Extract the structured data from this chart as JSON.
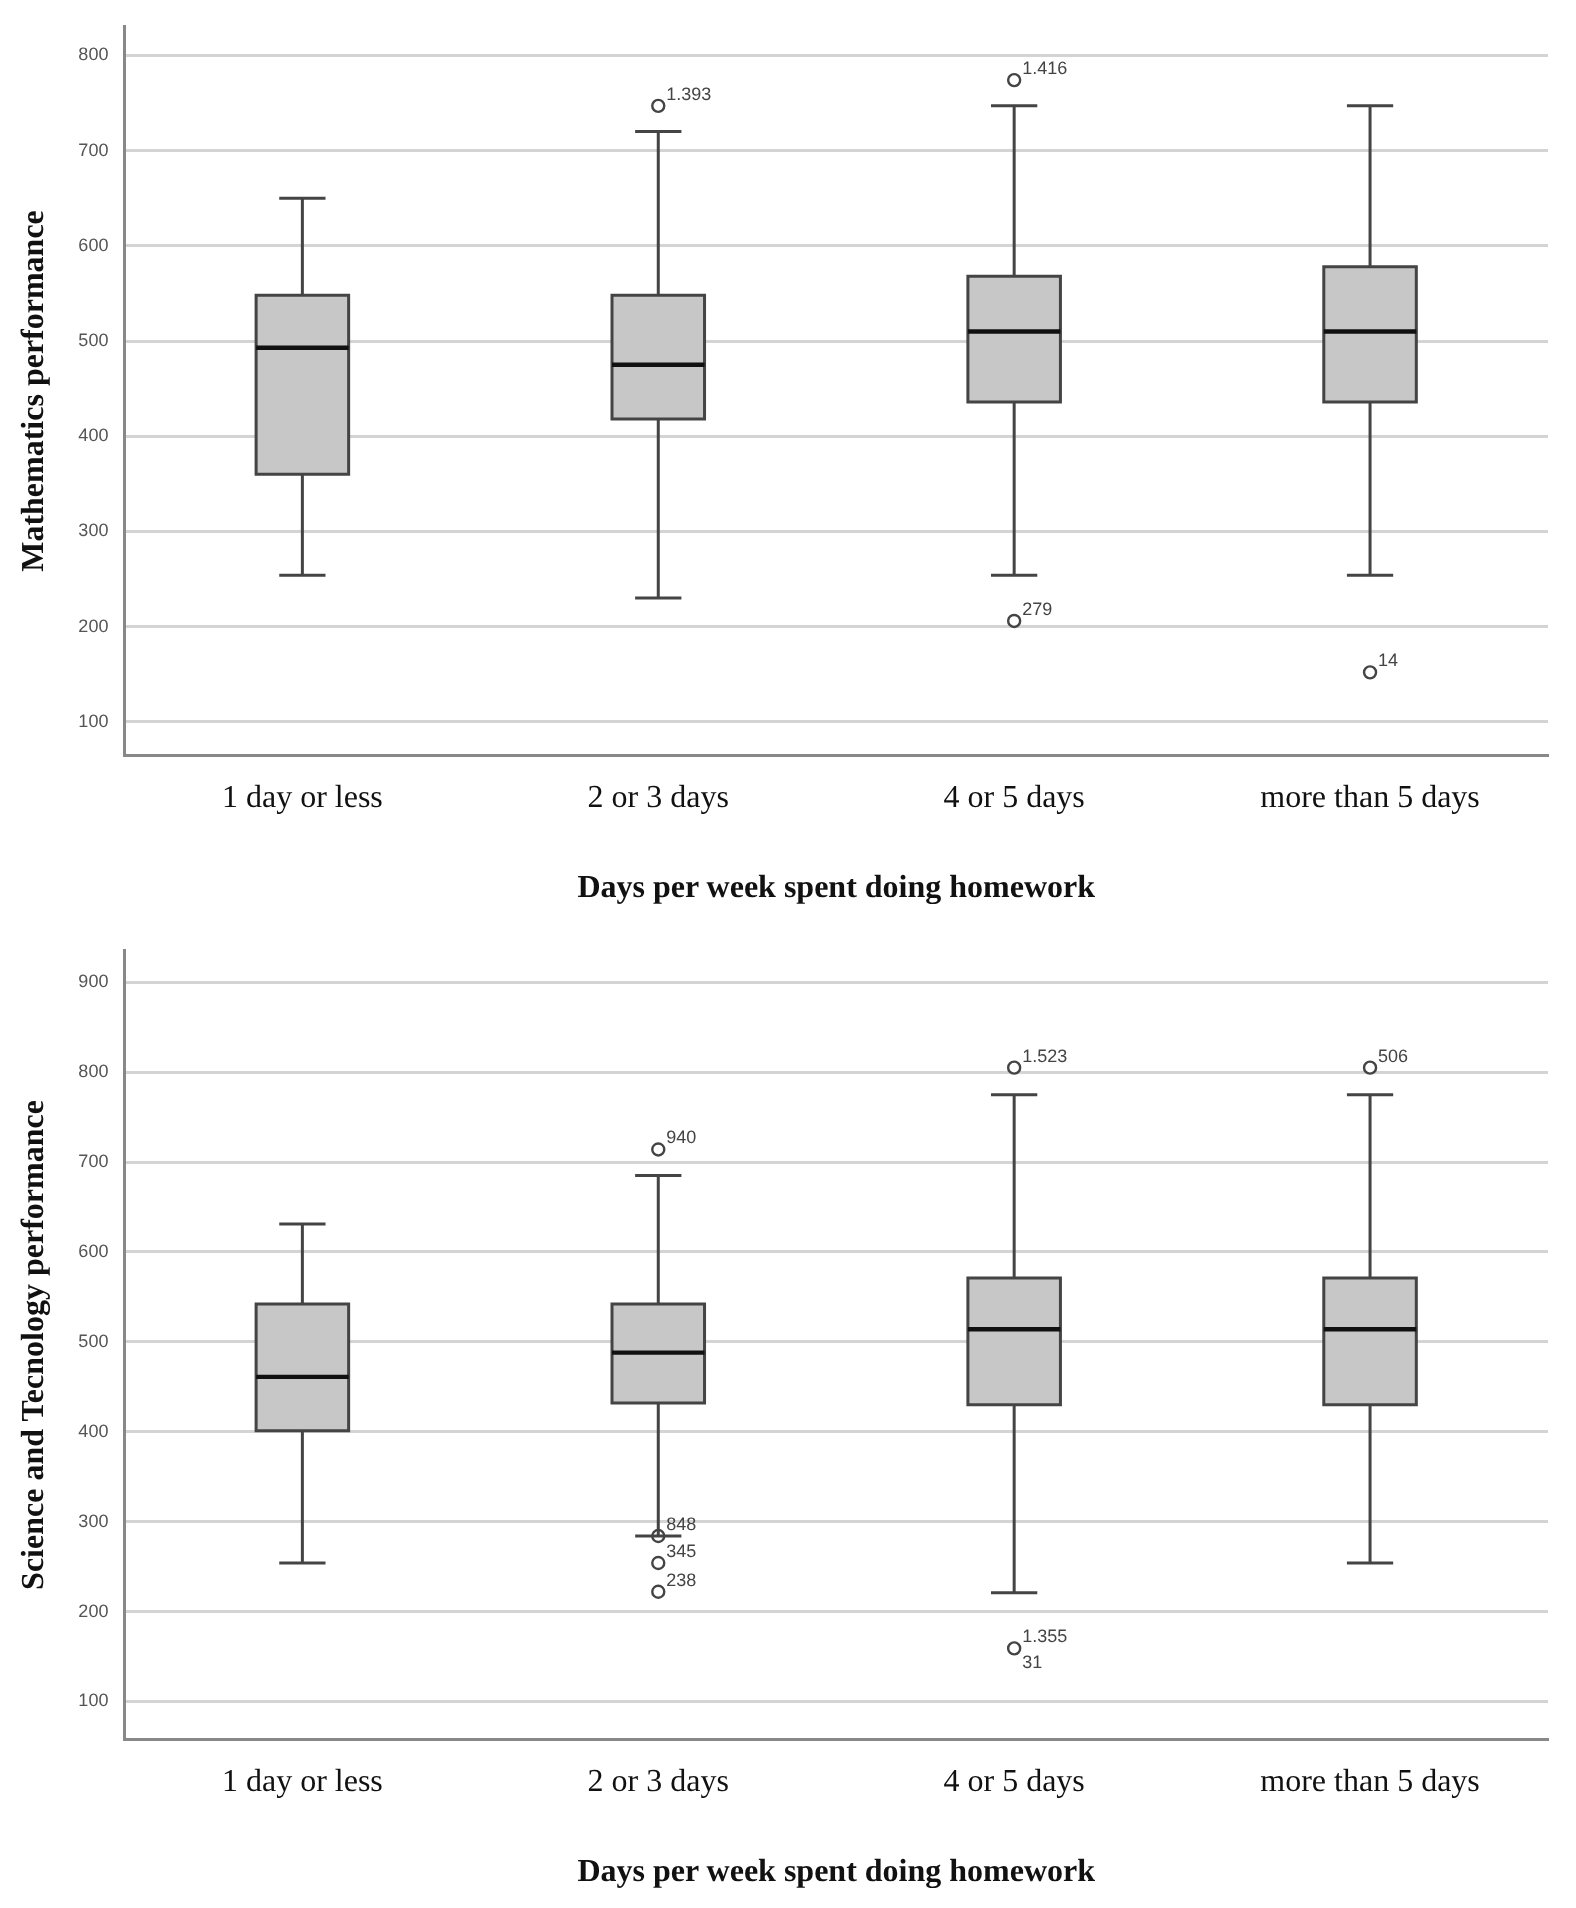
{
  "chart_data": [
    {
      "type": "box",
      "xlabel": "Days per week spent doing homework",
      "ylabel": "Mathematics performance",
      "categories": [
        "1 day or less",
        "2 or 3 days",
        "4 or 5 days",
        "more than 5 days"
      ],
      "series": [
        {
          "color": "#c6c7c6",
          "boxes": [
            {
              "low": 254,
              "q1": 360,
              "median": 493,
              "q3": 548,
              "high": 650
            },
            {
              "low": 230,
              "q1": 418,
              "median": 475,
              "q3": 548,
              "high": 720
            },
            {
              "low": 254,
              "q1": 436,
              "median": 510,
              "q3": 568,
              "high": 747
            },
            {
              "low": 254,
              "q1": 436,
              "median": 510,
              "q3": 578,
              "high": 747
            }
          ]
        },
        {
          "type": "scatter",
          "color": "#444444",
          "x": [
            "2 or 3 days",
            "4 or 5 days",
            "4 or 5 days",
            "more than 5 days"
          ],
          "values": [
            747,
            774,
            206,
            152
          ]
        }
      ],
      "ylim": [
        65,
        830
      ],
      "yticks": [
        100,
        200,
        300,
        400,
        500,
        600,
        700,
        800
      ],
      "grid": "y",
      "legend": false,
      "marker": "circle",
      "annotations": [
        {
          "text": "1.393",
          "x": "2 or 3 days",
          "y": 747
        },
        {
          "text": "1.416",
          "x": "4 or 5 days",
          "y": 774
        },
        {
          "text": "279",
          "x": "4 or 5 days",
          "y": 206
        },
        {
          "text": "14",
          "x": "more than 5 days",
          "y": 152
        }
      ]
    },
    {
      "type": "box",
      "xlabel": "Days per week spent doing homework",
      "ylabel": "Science and Tecnology performance",
      "categories": [
        "1 day or less",
        "2 or 3 days",
        "4 or 5 days",
        "more than 5 days"
      ],
      "series": [
        {
          "color": "#c6c7c6",
          "boxes": [
            {
              "low": 254,
              "q1": 401,
              "median": 461,
              "q3": 542,
              "high": 631
            },
            {
              "low": 284,
              "q1": 432,
              "median": 488,
              "q3": 542,
              "high": 685
            },
            {
              "low": 221,
              "q1": 430,
              "median": 514,
              "q3": 571,
              "high": 775
            },
            {
              "low": 254,
              "q1": 430,
              "median": 514,
              "q3": 571,
              "high": 775
            }
          ]
        },
        {
          "type": "scatter",
          "color": "#444444",
          "x": [
            "2 or 3 days",
            "2 or 3 days",
            "2 or 3 days",
            "2 or 3 days",
            "4 or 5 days",
            "4 or 5 days",
            "more than 5 days"
          ],
          "values": [
            714,
            284,
            254,
            222,
            805,
            159,
            805
          ]
        }
      ],
      "ylim": [
        58,
        935
      ],
      "yticks": [
        100,
        200,
        300,
        400,
        500,
        600,
        700,
        800,
        900
      ],
      "grid": "y",
      "legend": false,
      "marker": "circle",
      "annotations": [
        {
          "text": "940",
          "x": "2 or 3 days",
          "y": 714
        },
        {
          "text": "848",
          "x": "2 or 3 days",
          "y": 284
        },
        {
          "text": "345",
          "x": "2 or 3 days",
          "y": 254
        },
        {
          "text": "238",
          "x": "2 or 3 days",
          "y": 222
        },
        {
          "text": "1.523",
          "x": "4 or 5 days",
          "y": 805
        },
        {
          "text": "1.355",
          "x": "4 or 5 days",
          "y": 159
        },
        {
          "text": "31",
          "x": "4 or 5 days",
          "y": 159
        },
        {
          "text": "506",
          "x": "more than 5 days",
          "y": 805
        }
      ]
    }
  ]
}
